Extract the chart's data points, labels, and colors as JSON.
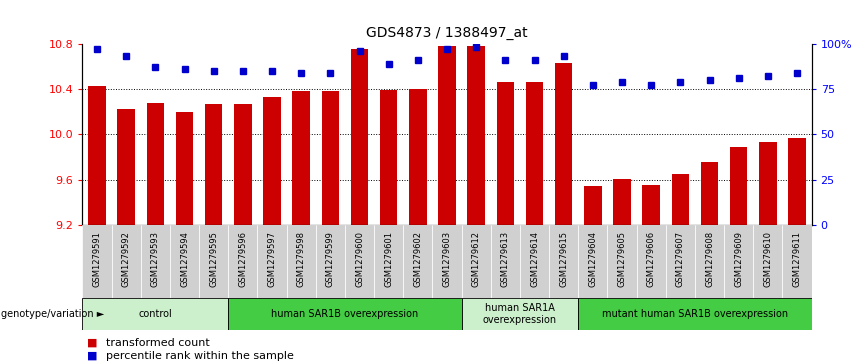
{
  "title": "GDS4873 / 1388497_at",
  "samples": [
    "GSM1279591",
    "GSM1279592",
    "GSM1279593",
    "GSM1279594",
    "GSM1279595",
    "GSM1279596",
    "GSM1279597",
    "GSM1279598",
    "GSM1279599",
    "GSM1279600",
    "GSM1279601",
    "GSM1279602",
    "GSM1279603",
    "GSM1279612",
    "GSM1279613",
    "GSM1279614",
    "GSM1279615",
    "GSM1279604",
    "GSM1279605",
    "GSM1279606",
    "GSM1279607",
    "GSM1279608",
    "GSM1279609",
    "GSM1279610",
    "GSM1279611"
  ],
  "transformed_count": [
    10.43,
    10.22,
    10.28,
    10.2,
    10.27,
    10.27,
    10.33,
    10.38,
    10.38,
    10.75,
    10.39,
    10.4,
    10.78,
    10.78,
    10.46,
    10.46,
    10.63,
    9.54,
    9.61,
    9.55,
    9.65,
    9.76,
    9.89,
    9.93,
    9.97
  ],
  "percentile_rank": [
    97,
    93,
    87,
    86,
    85,
    85,
    85,
    84,
    84,
    96,
    89,
    91,
    97,
    98,
    91,
    91,
    93,
    77,
    79,
    77,
    79,
    80,
    81,
    82,
    84
  ],
  "ylim_left": [
    9.2,
    10.8
  ],
  "ylim_right": [
    0,
    100
  ],
  "yticks_left": [
    9.2,
    9.6,
    10.0,
    10.4,
    10.8
  ],
  "yticks_right": [
    0,
    25,
    50,
    75,
    100
  ],
  "bar_color": "#cc0000",
  "dot_color": "#0000cc",
  "groups": [
    {
      "label": "control",
      "start": 0,
      "end": 5,
      "color": "#ccf0cc"
    },
    {
      "label": "human SAR1B overexpression",
      "start": 5,
      "end": 13,
      "color": "#44cc44"
    },
    {
      "label": "human SAR1A\noverexpression",
      "start": 13,
      "end": 17,
      "color": "#ccf0cc"
    },
    {
      "label": "mutant human SAR1B overexpression",
      "start": 17,
      "end": 25,
      "color": "#44cc44"
    }
  ],
  "group_label": "genotype/variation",
  "legend_items": [
    {
      "color": "#cc0000",
      "label": "transformed count"
    },
    {
      "color": "#0000cc",
      "label": "percentile rank within the sample"
    }
  ],
  "tick_bg_color": "#d0d0d0",
  "grid_lines": [
    9.6,
    10.0,
    10.4
  ],
  "bar_width": 0.6
}
